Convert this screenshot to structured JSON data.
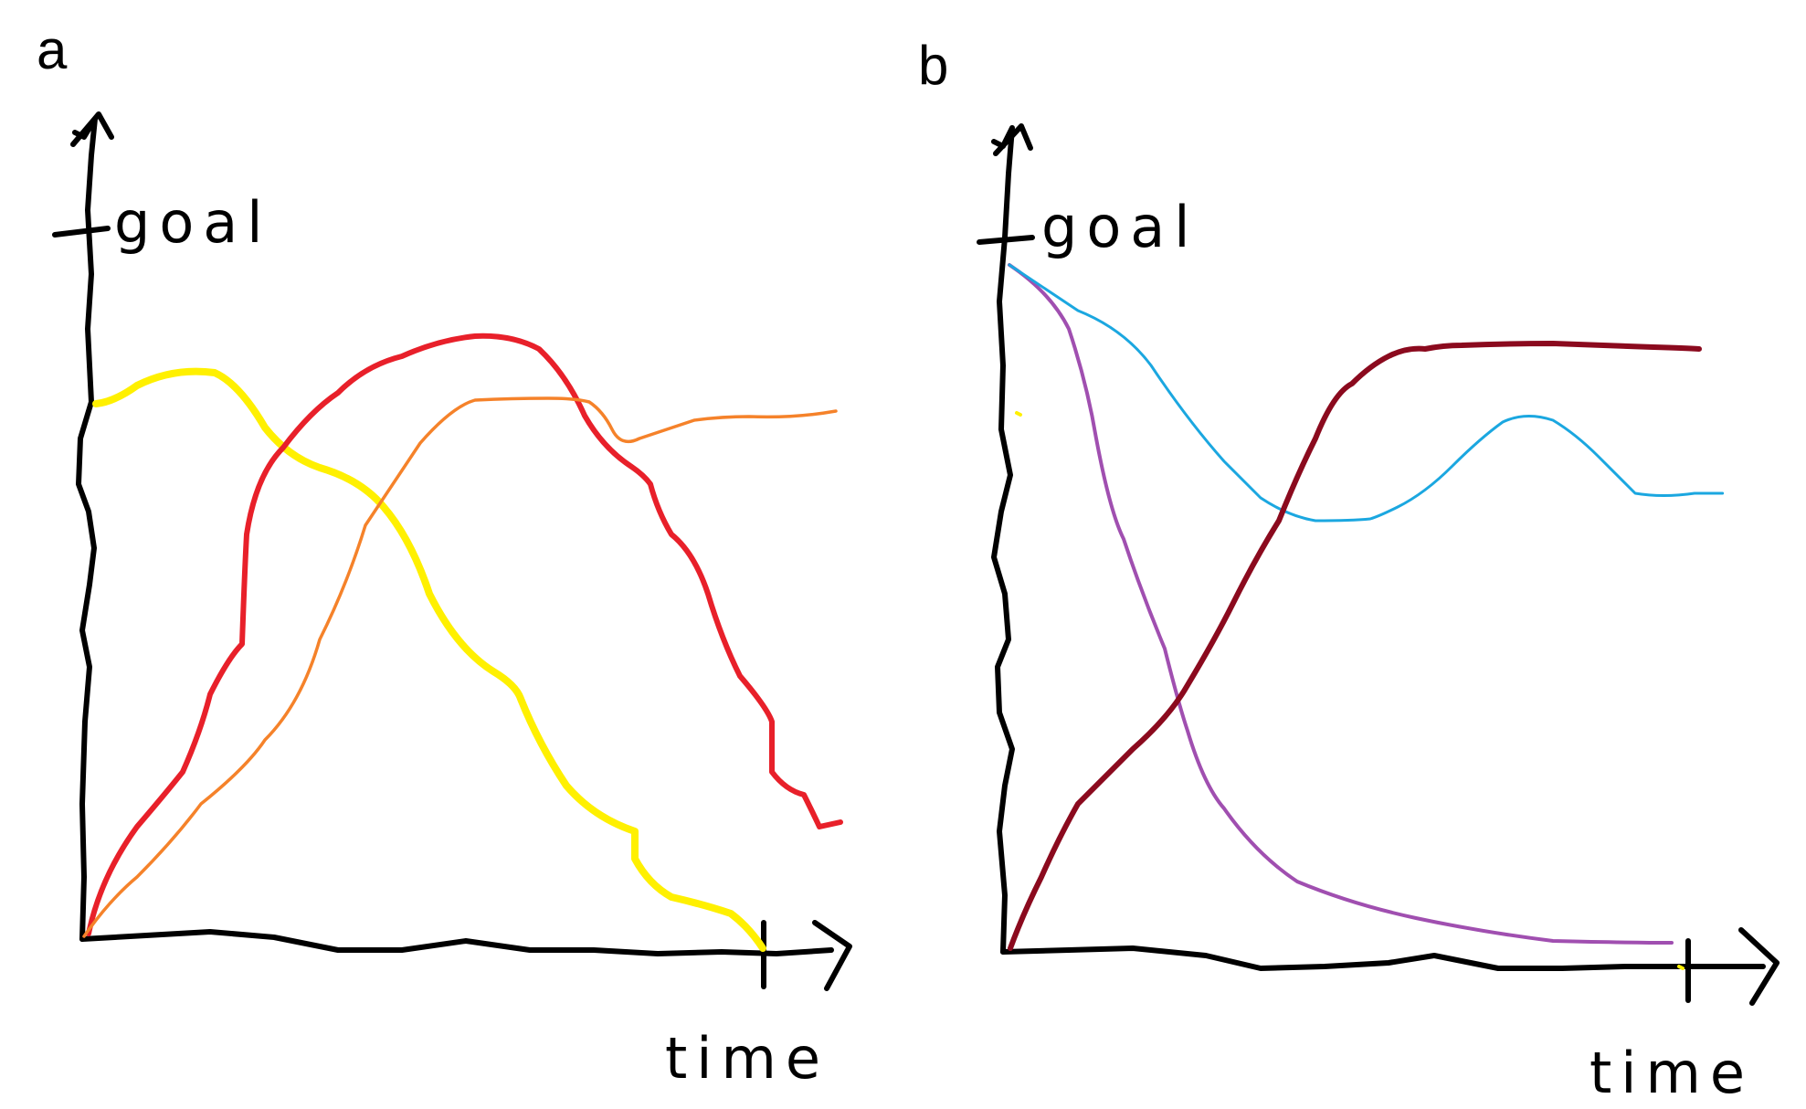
{
  "panels": [
    {
      "letter": "a",
      "y_label": "goal",
      "x_label": "time",
      "curves": [
        {
          "name": "yellow",
          "color": "#FFF000"
        },
        {
          "name": "red",
          "color": "#E8202A"
        },
        {
          "name": "orange",
          "color": "#F5822A"
        }
      ]
    },
    {
      "letter": "b",
      "y_label": "goal",
      "x_label": "time",
      "curves": [
        {
          "name": "purple",
          "color": "#A04FB0"
        },
        {
          "name": "cyan",
          "color": "#1BA7E0"
        },
        {
          "name": "dark-red",
          "color": "#8B0A1E"
        }
      ]
    }
  ]
}
